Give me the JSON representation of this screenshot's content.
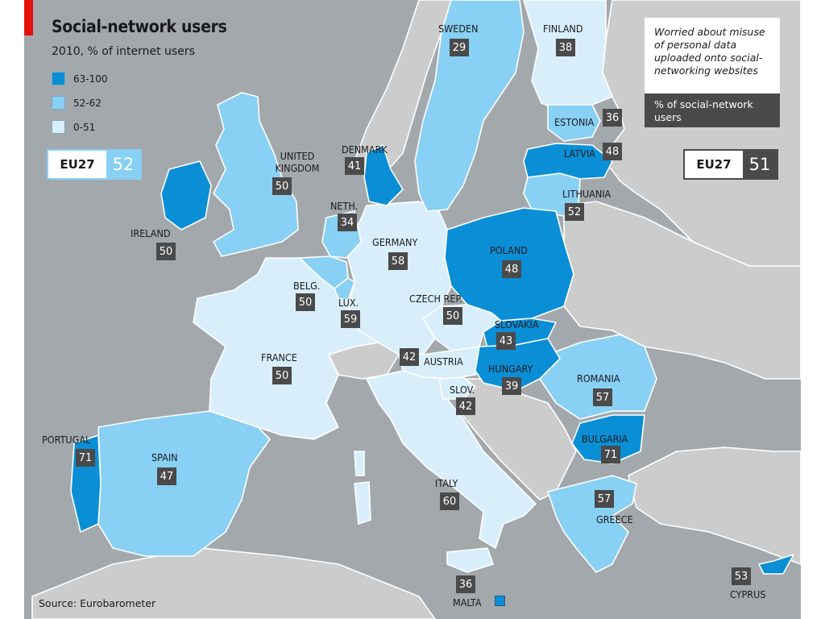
{
  "title": "Social-network users",
  "subtitle": "2010, % of internet users",
  "colors": {
    "high": "#0a8fd6",
    "mid": "#88d0f4",
    "low": "#d8effb",
    "non_eu": "#cccccc",
    "sea": "#a3a8ad",
    "dark_box": "#4a4a4a",
    "red_bar": "#e3120b"
  },
  "legend": [
    {
      "label": "63-100",
      "color": "#0a8fd6"
    },
    {
      "label": "52-62",
      "color": "#88d0f4"
    },
    {
      "label": "0-51",
      "color": "#d8effb"
    }
  ],
  "eu_left": {
    "label": "EU27",
    "value": "52"
  },
  "eu_right": {
    "label": "EU27",
    "value": "51"
  },
  "note": {
    "question": "Worried about misuse of personal data uploaded onto social-networking websites",
    "measure": "% of social-network users"
  },
  "countries": {
    "sweden": {
      "name": "SWEDEN",
      "value": "29"
    },
    "finland": {
      "name": "FINLAND",
      "value": "38"
    },
    "estonia": {
      "name": "ESTONIA",
      "value": "36"
    },
    "latvia": {
      "name": "LATVIA",
      "value": "48"
    },
    "lithuania": {
      "name": "LITHUANIA",
      "value": "52"
    },
    "denmark": {
      "name": "DENMARK",
      "value": "41"
    },
    "uk": {
      "name": "UNITED KINGDOM",
      "line1": "UNITED",
      "line2": "KINGDOM",
      "value": "50"
    },
    "ireland": {
      "name": "IRELAND",
      "value": "50"
    },
    "netherlands": {
      "name": "NETH.",
      "value": "34"
    },
    "germany": {
      "name": "GERMANY",
      "value": "58"
    },
    "poland": {
      "name": "POLAND",
      "value": "48"
    },
    "belgium": {
      "name": "BELG.",
      "value": "50"
    },
    "luxembourg": {
      "name": "LUX.",
      "value": "59"
    },
    "czech": {
      "name": "CZECH REP.",
      "value": "50"
    },
    "slovakia": {
      "name": "SLOVAKIA",
      "value": "43"
    },
    "france": {
      "name": "FRANCE",
      "value": "50"
    },
    "austria": {
      "name": "AUSTRIA",
      "value": "42"
    },
    "hungary": {
      "name": "HUNGARY",
      "value": "39"
    },
    "romania": {
      "name": "ROMANIA",
      "value": "57"
    },
    "slovenia": {
      "name": "SLOV.",
      "value": "42"
    },
    "portugal": {
      "name": "PORTUGAL",
      "value": "71"
    },
    "spain": {
      "name": "SPAIN",
      "value": "47"
    },
    "italy": {
      "name": "ITALY",
      "value": "60"
    },
    "bulgaria": {
      "name": "BULGARIA",
      "value": "71"
    },
    "greece": {
      "name": "GREECE",
      "value": "57"
    },
    "malta": {
      "name": "MALTA",
      "value": "36"
    },
    "cyprus": {
      "name": "CYPRUS",
      "value": "53"
    }
  },
  "source": "Source: Eurobarometer"
}
